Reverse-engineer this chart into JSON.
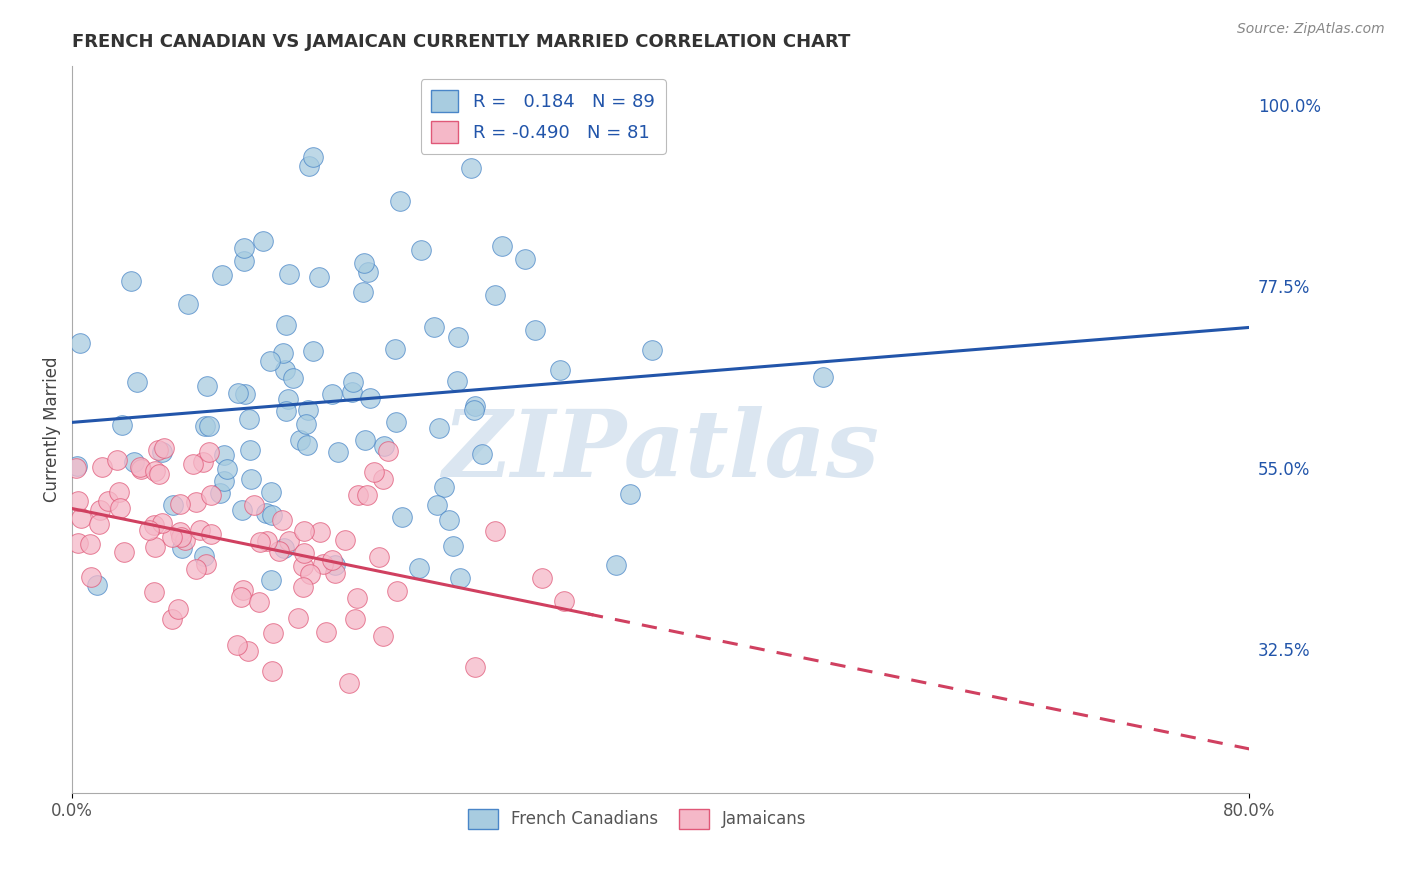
{
  "title": "FRENCH CANADIAN VS JAMAICAN CURRENTLY MARRIED CORRELATION CHART",
  "source": "Source: ZipAtlas.com",
  "ylabel": "Currently Married",
  "ytick_labels": [
    "100.0%",
    "77.5%",
    "55.0%",
    "32.5%"
  ],
  "ytick_values": [
    1.0,
    0.775,
    0.55,
    0.325
  ],
  "xmin": 0.0,
  "xmax": 0.8,
  "ymin": 0.15,
  "ymax": 1.05,
  "blue_R": 0.184,
  "blue_N": 89,
  "pink_R": -0.49,
  "pink_N": 81,
  "blue_color": "#a8cce0",
  "pink_color": "#f5b8c8",
  "blue_edge_color": "#4a86c8",
  "pink_edge_color": "#e05878",
  "blue_line_color": "#2255aa",
  "pink_line_color": "#d04060",
  "watermark": "ZIPatlas",
  "legend_label_blue": "R =   0.184   N = 89",
  "legend_label_pink": "R = -0.490   N = 81",
  "bottom_label_blue": "French Canadians",
  "bottom_label_pink": "Jamaicans"
}
